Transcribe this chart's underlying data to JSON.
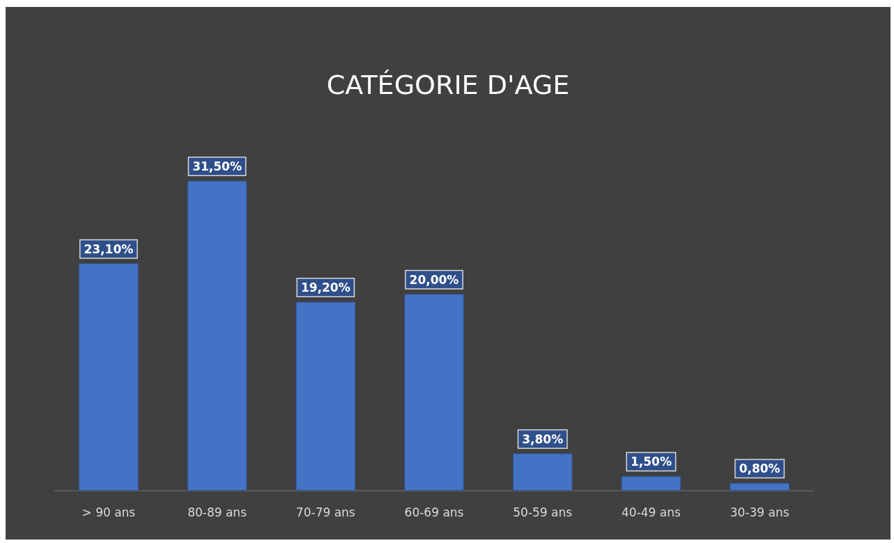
{
  "chart_data": {
    "type": "bar",
    "title": "CATÉGORIE D'AGE",
    "categories": [
      "> 90 ans",
      "80-89 ans",
      "70-79 ans",
      "60-69 ans",
      "50-59 ans",
      "40-49 ans",
      "30-39 ans"
    ],
    "values": [
      23.1,
      31.5,
      19.2,
      20.0,
      3.8,
      1.5,
      0.8
    ],
    "value_labels": [
      "23,10%",
      "31,50%",
      "19,20%",
      "20,00%",
      "3,80%",
      "1,50%",
      "0,80%"
    ],
    "color": "#4472c4"
  }
}
